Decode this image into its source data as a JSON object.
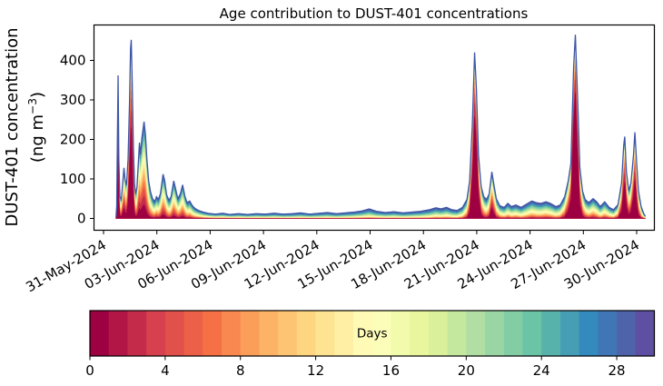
{
  "figure": {
    "title": "Age contribution to DUST-401 concentrations",
    "background_color": "#ffffff",
    "text_color": "#000000"
  },
  "axes": {
    "ylabel_line1": "DUST-401 concentration",
    "ylabel_line2_open": "(ng m",
    "ylabel_line2_sup": "−3",
    "ylabel_line2_close": ")",
    "frame_color": "#000000",
    "yticks": {
      "values": [
        0,
        100,
        200,
        300,
        400
      ],
      "labels": [
        "0",
        "100",
        "200",
        "300",
        "400"
      ]
    },
    "xticks": {
      "days": [
        0,
        3,
        6,
        9,
        12,
        15,
        18,
        21,
        24,
        27,
        30
      ],
      "labels": [
        "31-May-2024",
        "03-Jun-2024",
        "06-Jun-2024",
        "09-Jun-2024",
        "12-Jun-2024",
        "15-Jun-2024",
        "18-Jun-2024",
        "21-Jun-2024",
        "24-Jun-2024",
        "27-Jun-2024",
        "30-Jun-2024"
      ]
    }
  },
  "colorbar": {
    "label": "Days",
    "vmin": 0,
    "vmax": 30,
    "n_bins": 30,
    "tick_values": [
      0,
      4,
      8,
      12,
      16,
      20,
      24,
      28
    ],
    "tick_labels": [
      "0",
      "4",
      "8",
      "12",
      "16",
      "20",
      "24",
      "28"
    ]
  },
  "colormap": {
    "name": "Spectral",
    "anchors": [
      [
        0.0,
        "#9e0142"
      ],
      [
        0.1,
        "#d53e4f"
      ],
      [
        0.2,
        "#f46d43"
      ],
      [
        0.3,
        "#fdae61"
      ],
      [
        0.4,
        "#fee08b"
      ],
      [
        0.5,
        "#ffffbf"
      ],
      [
        0.6,
        "#e6f598"
      ],
      [
        0.7,
        "#abdda4"
      ],
      [
        0.8,
        "#66c2a5"
      ],
      [
        0.9,
        "#3288bd"
      ],
      [
        1.0,
        "#5e4fa2"
      ]
    ]
  },
  "chart_data": {
    "type": "area",
    "subtype": "stacked_area_age_spectrum",
    "title": "Age contribution to DUST-401 concentrations",
    "ylabel": "DUST-401 concentration (ng m⁻³)",
    "y_unit": "ng m⁻³",
    "x_unit": "days since 31-May-2024 00:00",
    "xlim_days": [
      -0.5,
      31.0
    ],
    "ylim": [
      -24,
      488
    ],
    "grid": false,
    "legend": "horizontal colorbar, 'Days', 0-30, Spectral colormap, 30 discrete bins",
    "age_band_count": 15,
    "age_band_width_days": 2,
    "age_model": "cumulative fraction of total concentration younger than band k (of N=15, youngest at bottom in red, oldest on top in blue) = (k/N)^p; small p = fresh dust (red core), large p = aged dust (blue/green dominated)",
    "outline_color": "#3e56a6",
    "points_format": [
      "day_since_31May2024",
      "total_concentration_ng_m3",
      "age_spread_exponent_p"
    ],
    "points": [
      [
        0.7,
        2,
        1.0
      ],
      [
        0.74,
        30,
        0.6
      ],
      [
        0.78,
        200,
        0.38
      ],
      [
        0.82,
        362,
        0.3
      ],
      [
        0.86,
        150,
        0.45
      ],
      [
        0.92,
        55,
        0.8
      ],
      [
        1.0,
        48,
        0.85
      ],
      [
        1.08,
        90,
        0.7
      ],
      [
        1.15,
        128,
        0.6
      ],
      [
        1.22,
        95,
        0.7
      ],
      [
        1.3,
        88,
        0.7
      ],
      [
        1.38,
        150,
        0.5
      ],
      [
        1.46,
        290,
        0.35
      ],
      [
        1.52,
        430,
        0.28
      ],
      [
        1.56,
        452,
        0.25
      ],
      [
        1.62,
        330,
        0.3
      ],
      [
        1.68,
        180,
        0.45
      ],
      [
        1.74,
        90,
        0.7
      ],
      [
        1.8,
        62,
        0.9
      ],
      [
        1.88,
        78,
        0.9
      ],
      [
        1.95,
        135,
        0.8
      ],
      [
        2.02,
        192,
        0.75
      ],
      [
        2.08,
        162,
        0.8
      ],
      [
        2.16,
        205,
        0.75
      ],
      [
        2.28,
        245,
        0.72
      ],
      [
        2.36,
        212,
        0.8
      ],
      [
        2.44,
        150,
        0.9
      ],
      [
        2.54,
        95,
        1.0
      ],
      [
        2.64,
        68,
        1.1
      ],
      [
        2.76,
        50,
        1.2
      ],
      [
        2.88,
        42,
        1.2
      ],
      [
        2.98,
        55,
        1.1
      ],
      [
        3.08,
        48,
        1.2
      ],
      [
        3.2,
        62,
        1.1
      ],
      [
        3.35,
        112,
        0.9
      ],
      [
        3.44,
        96,
        0.95
      ],
      [
        3.55,
        60,
        1.1
      ],
      [
        3.68,
        46,
        1.2
      ],
      [
        3.8,
        55,
        1.15
      ],
      [
        3.95,
        95,
        0.95
      ],
      [
        4.05,
        76,
        1.05
      ],
      [
        4.18,
        50,
        1.2
      ],
      [
        4.32,
        62,
        1.1
      ],
      [
        4.45,
        85,
        1.0
      ],
      [
        4.58,
        56,
        1.15
      ],
      [
        4.7,
        40,
        1.3
      ],
      [
        4.85,
        44,
        1.25
      ],
      [
        5.0,
        32,
        1.4
      ],
      [
        5.15,
        25,
        1.5
      ],
      [
        5.35,
        20,
        1.6
      ],
      [
        5.6,
        16,
        1.8
      ],
      [
        5.9,
        13,
        2.0
      ],
      [
        6.3,
        11,
        2.2
      ],
      [
        6.7,
        13,
        2.3
      ],
      [
        7.1,
        10,
        2.4
      ],
      [
        7.6,
        12,
        2.5
      ],
      [
        8.1,
        10,
        2.6
      ],
      [
        8.6,
        12,
        2.6
      ],
      [
        9.1,
        11,
        2.7
      ],
      [
        9.6,
        13,
        2.7
      ],
      [
        10.1,
        11,
        2.8
      ],
      [
        10.6,
        12,
        2.8
      ],
      [
        11.1,
        14,
        2.8
      ],
      [
        11.6,
        11,
        2.8
      ],
      [
        12.1,
        13,
        2.8
      ],
      [
        12.6,
        15,
        2.8
      ],
      [
        13.1,
        12,
        2.8
      ],
      [
        13.6,
        14,
        2.7
      ],
      [
        14.1,
        16,
        2.6
      ],
      [
        14.55,
        19,
        2.5
      ],
      [
        14.95,
        24,
        2.4
      ],
      [
        15.35,
        18,
        2.5
      ],
      [
        15.85,
        15,
        2.6
      ],
      [
        16.35,
        17,
        2.6
      ],
      [
        16.85,
        14,
        2.7
      ],
      [
        17.35,
        16,
        2.6
      ],
      [
        17.85,
        18,
        2.5
      ],
      [
        18.35,
        22,
        2.4
      ],
      [
        18.7,
        27,
        2.2
      ],
      [
        19.0,
        24,
        2.2
      ],
      [
        19.3,
        28,
        2.1
      ],
      [
        19.6,
        22,
        2.2
      ],
      [
        19.9,
        20,
        2.2
      ],
      [
        20.2,
        28,
        1.8
      ],
      [
        20.45,
        48,
        1.2
      ],
      [
        20.6,
        95,
        0.7
      ],
      [
        20.75,
        235,
        0.32
      ],
      [
        20.88,
        420,
        0.18
      ],
      [
        20.98,
        330,
        0.22
      ],
      [
        21.1,
        160,
        0.4
      ],
      [
        21.25,
        80,
        0.8
      ],
      [
        21.4,
        55,
        1.1
      ],
      [
        21.55,
        48,
        1.2
      ],
      [
        21.7,
        62,
        1.0
      ],
      [
        21.85,
        118,
        0.55
      ],
      [
        21.95,
        90,
        0.7
      ],
      [
        22.1,
        50,
        1.1
      ],
      [
        22.3,
        32,
        1.5
      ],
      [
        22.55,
        28,
        1.7
      ],
      [
        22.75,
        38,
        1.5
      ],
      [
        22.95,
        30,
        1.7
      ],
      [
        23.2,
        34,
        1.6
      ],
      [
        23.5,
        28,
        1.8
      ],
      [
        23.8,
        36,
        1.6
      ],
      [
        24.1,
        44,
        1.4
      ],
      [
        24.35,
        40,
        1.5
      ],
      [
        24.6,
        38,
        1.5
      ],
      [
        24.9,
        42,
        1.4
      ],
      [
        25.15,
        38,
        1.5
      ],
      [
        25.45,
        30,
        1.7
      ],
      [
        25.7,
        34,
        1.5
      ],
      [
        25.95,
        55,
        1.0
      ],
      [
        26.15,
        95,
        0.6
      ],
      [
        26.3,
        140,
        0.4
      ],
      [
        26.45,
        380,
        0.18
      ],
      [
        26.55,
        465,
        0.14
      ],
      [
        26.68,
        300,
        0.25
      ],
      [
        26.8,
        130,
        0.5
      ],
      [
        26.95,
        70,
        0.9
      ],
      [
        27.1,
        48,
        1.2
      ],
      [
        27.3,
        40,
        1.4
      ],
      [
        27.55,
        50,
        1.2
      ],
      [
        27.75,
        42,
        1.4
      ],
      [
        27.95,
        30,
        1.7
      ],
      [
        28.2,
        42,
        1.4
      ],
      [
        28.45,
        28,
        1.6
      ],
      [
        28.7,
        22,
        1.8
      ],
      [
        28.95,
        35,
        1.2
      ],
      [
        29.15,
        90,
        0.6
      ],
      [
        29.27,
        185,
        0.35
      ],
      [
        29.33,
        207,
        0.3
      ],
      [
        29.42,
        120,
        0.5
      ],
      [
        29.55,
        70,
        0.8
      ],
      [
        29.68,
        90,
        0.6
      ],
      [
        29.82,
        160,
        0.4
      ],
      [
        29.9,
        218,
        0.3
      ],
      [
        30.0,
        140,
        0.5
      ],
      [
        30.1,
        70,
        0.8
      ],
      [
        30.25,
        30,
        1.3
      ],
      [
        30.4,
        12,
        1.8
      ],
      [
        30.48,
        6,
        2.0
      ]
    ]
  }
}
